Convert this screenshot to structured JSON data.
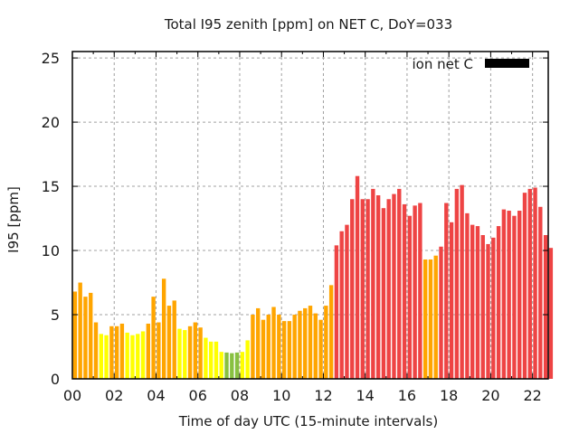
{
  "chart_data": {
    "type": "bar",
    "title": "Total I95 zenith [ppm] on NET C, DoY=033",
    "xlabel": "Time of day UTC (15-minute intervals)",
    "ylabel": "I95 [ppm]",
    "ylim": [
      0,
      25.5
    ],
    "yticks": [
      0,
      5,
      10,
      15,
      20,
      25
    ],
    "xticks": [
      "00",
      "02",
      "04",
      "06",
      "08",
      "10",
      "12",
      "14",
      "16",
      "18",
      "20",
      "22"
    ],
    "xtick_hours": [
      0,
      2,
      4,
      6,
      8,
      10,
      12,
      14,
      16,
      18,
      20,
      22
    ],
    "xlim_hours": [
      0,
      22.75
    ],
    "interval_minutes": 15,
    "grid": true,
    "legend": {
      "label": "ion net C",
      "color": "#000000",
      "placement": "top-right"
    },
    "color_scale": {
      "green": "#88c040",
      "yellow": "#ffff00",
      "orange": "#ffa500",
      "red": "#ee4444",
      "green_max": 2.05,
      "yellow_max": 4.0,
      "orange_max": 10.0
    },
    "values": [
      6.8,
      7.5,
      6.4,
      6.7,
      4.4,
      3.5,
      3.4,
      4.1,
      4.1,
      4.3,
      3.6,
      3.4,
      3.5,
      3.7,
      4.3,
      6.4,
      4.4,
      7.8,
      5.7,
      6.1,
      3.9,
      3.8,
      4.1,
      4.4,
      4.0,
      3.2,
      2.9,
      2.9,
      2.1,
      2.05,
      2.0,
      2.05,
      2.1,
      3.0,
      5.0,
      5.5,
      4.6,
      5.0,
      5.6,
      5.0,
      4.5,
      4.5,
      5.0,
      5.3,
      5.5,
      5.7,
      5.1,
      4.6,
      5.7,
      7.3,
      10.4,
      11.5,
      12.0,
      14.0,
      15.8,
      14.0,
      14.0,
      14.8,
      14.3,
      13.3,
      14.0,
      14.4,
      14.8,
      13.6,
      12.7,
      13.5,
      13.7,
      9.3,
      9.3,
      9.6,
      10.3,
      13.7,
      12.2,
      14.8,
      15.1,
      12.9,
      12.0,
      11.9,
      11.2,
      10.5,
      11.0,
      11.9,
      13.2,
      13.1,
      12.7,
      13.1,
      14.5,
      14.8,
      14.9,
      13.4,
      11.2,
      10.2
    ]
  }
}
